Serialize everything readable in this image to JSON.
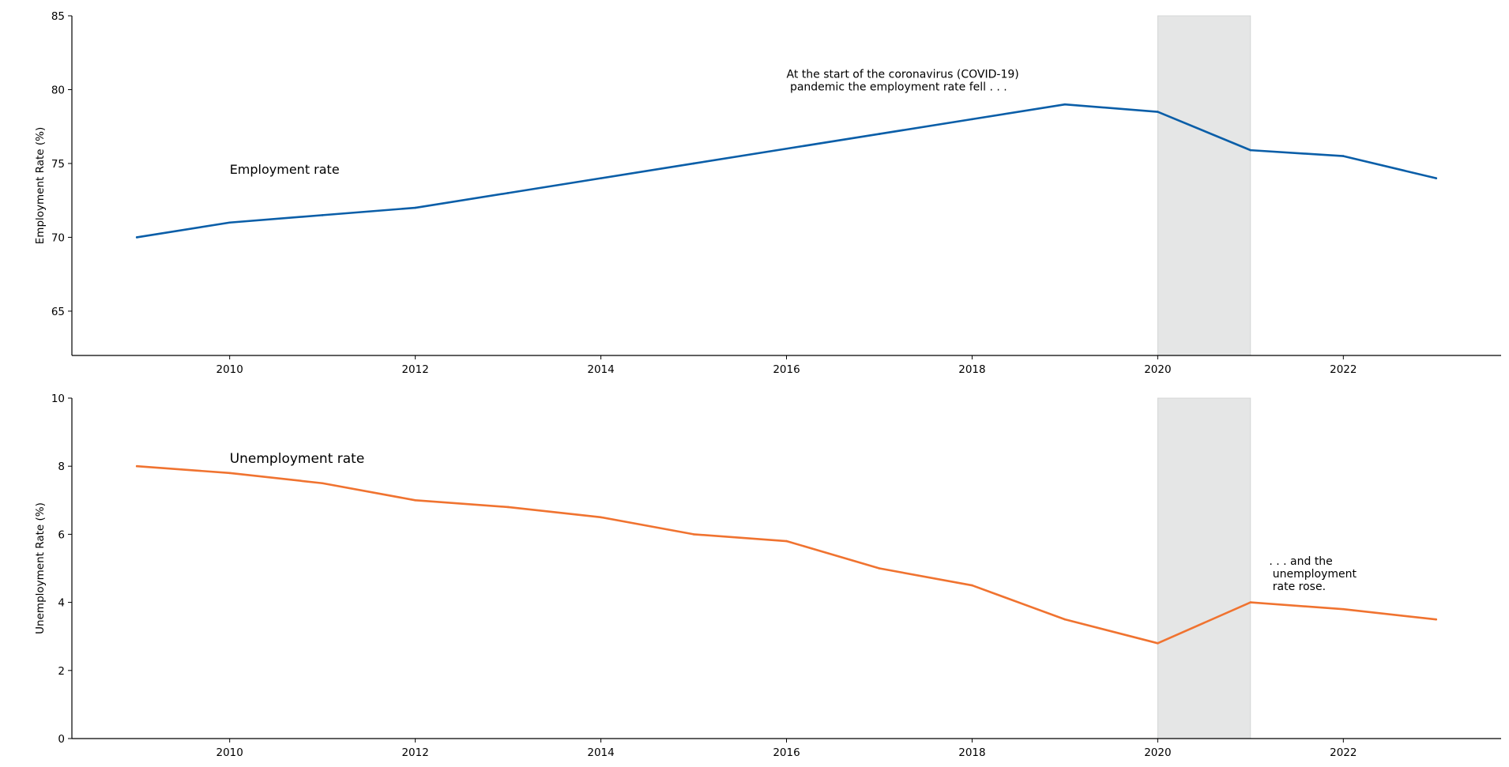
{
  "chart_data": [
    {
      "type": "line",
      "ylabel": "Employment Rate (%)",
      "xlim": [
        2008.3,
        2023.7
      ],
      "ylim": [
        62,
        85
      ],
      "yticks": [
        65,
        70,
        75,
        80,
        85
      ],
      "xticks": [
        2010,
        2012,
        2014,
        2016,
        2018,
        2020,
        2022
      ],
      "shaded_span": [
        2020,
        2021
      ],
      "shade_color": "#e5e6e6",
      "series": [
        {
          "color": "#0a5ea8",
          "x": [
            2009,
            2010,
            2011,
            2012,
            2013,
            2014,
            2015,
            2016,
            2017,
            2018,
            2019,
            2020,
            2021,
            2022,
            2023
          ],
          "y": [
            70,
            71,
            71.5,
            72,
            73,
            74,
            75,
            76,
            77,
            78,
            79,
            78.5,
            75.9,
            75.5,
            74
          ]
        }
      ],
      "series_label": {
        "text": "Employment rate",
        "x": 2010,
        "y": 74.3
      },
      "annotation": {
        "lines": [
          "At the start of the coronavirus (COVID-19)",
          " pandemic the employment rate fell . . ."
        ],
        "x": 2016,
        "y": 80.8
      }
    },
    {
      "type": "line",
      "ylabel": "Unemployment Rate (%)",
      "xlim": [
        2008.3,
        2023.7
      ],
      "ylim": [
        0,
        10
      ],
      "yticks": [
        0,
        2,
        4,
        6,
        8,
        10
      ],
      "xticks": [
        2010,
        2012,
        2014,
        2016,
        2018,
        2020,
        2022
      ],
      "shaded_span": [
        2020,
        2021
      ],
      "shade_color": "#e5e6e6",
      "series": [
        {
          "color": "#f07330",
          "x": [
            2009,
            2010,
            2011,
            2012,
            2013,
            2014,
            2015,
            2016,
            2017,
            2018,
            2019,
            2020,
            2021,
            2022,
            2023
          ],
          "y": [
            8,
            7.8,
            7.5,
            7,
            6.8,
            6.5,
            6,
            5.8,
            5,
            4.5,
            3.5,
            2.8,
            4,
            3.8,
            3.5
          ]
        }
      ],
      "series_label": {
        "text": "Unemployment rate",
        "x": 2010,
        "y": 8.1
      },
      "annotation": {
        "lines": [
          ". . . and the",
          " unemployment",
          " rate rose."
        ],
        "x": 2021.2,
        "y": 5.1
      }
    }
  ]
}
